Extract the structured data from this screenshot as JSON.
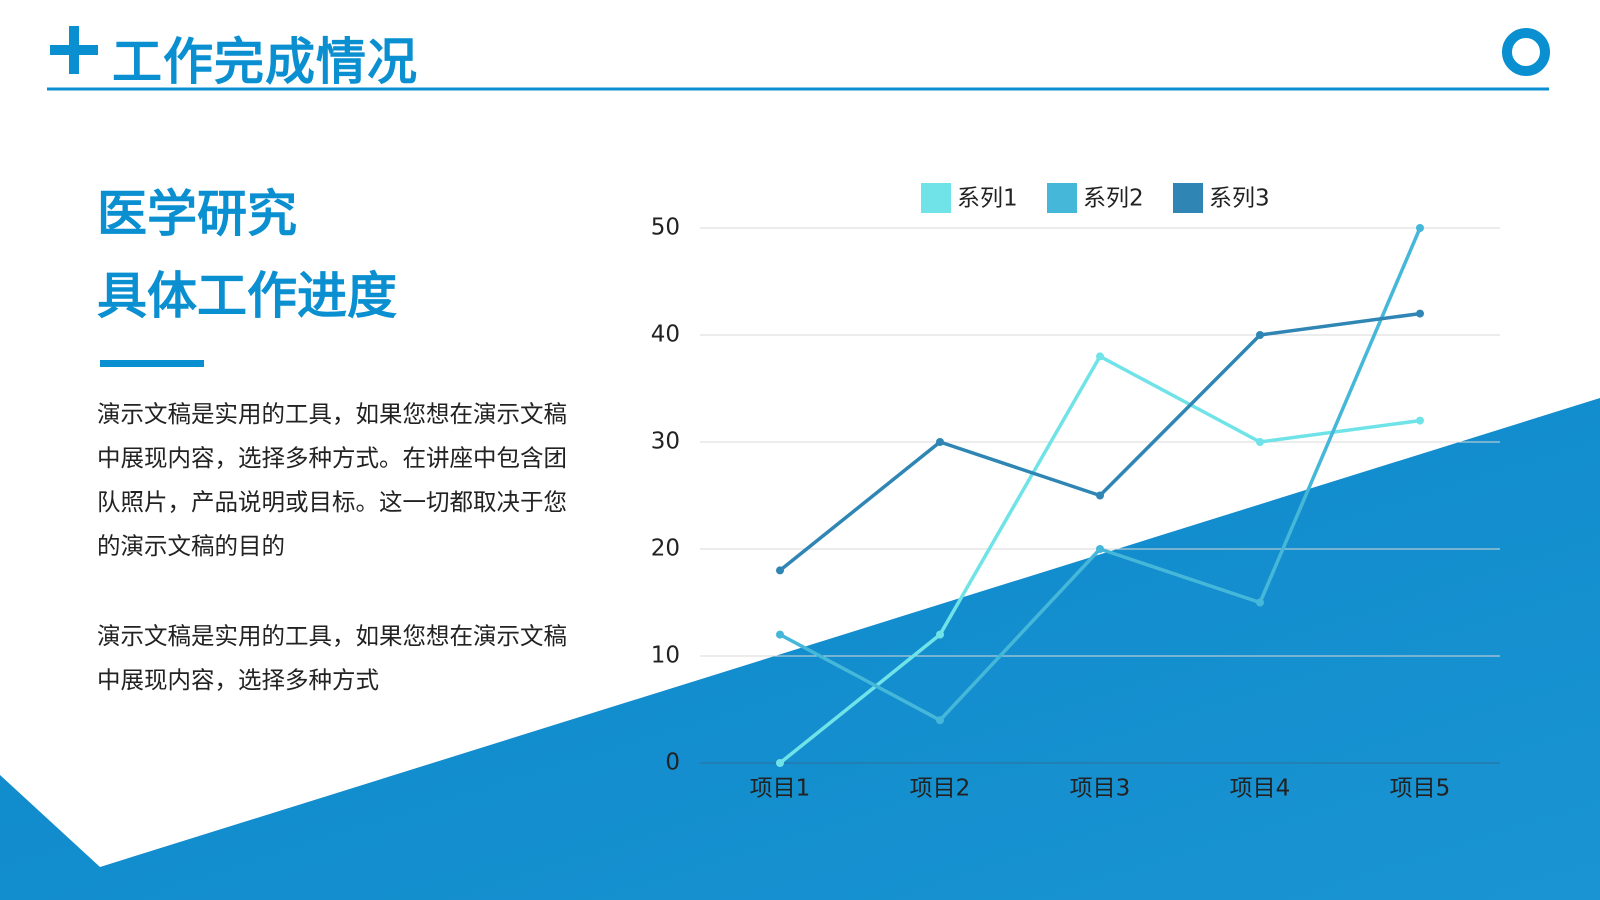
{
  "header": {
    "title": "工作完成情况"
  },
  "section": {
    "title_lines": [
      "医学研究",
      "具体工作进度"
    ],
    "paragraphs": [
      "演示文稿是实用的工具，如果您想在演示文稿中展现内容，选择多种方式。在讲座中包含团队照片，产品说明或目标。这一切都取决于您的演示文稿的目的",
      "演示文稿是实用的工具，如果您想在演示文稿中展现内容，选择多种方式"
    ]
  },
  "chart_data": {
    "type": "line",
    "categories": [
      "项目1",
      "项目2",
      "项目3",
      "项目4",
      "项目5"
    ],
    "series": [
      {
        "name": "系列1",
        "color": "#6fe3e8",
        "values": [
          0,
          12,
          38,
          30,
          32
        ]
      },
      {
        "name": "系列2",
        "color": "#45b7d9",
        "values": [
          12,
          4,
          20,
          15,
          50
        ]
      },
      {
        "name": "系列3",
        "color": "#2f86b5",
        "values": [
          18,
          30,
          25,
          40,
          42
        ]
      }
    ],
    "ylim": [
      0,
      50
    ],
    "yticks": [
      0,
      10,
      20,
      30,
      40,
      50
    ],
    "grid": true,
    "legend": "top"
  }
}
